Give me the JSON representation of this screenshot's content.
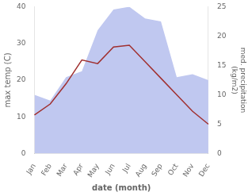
{
  "chart_data": {
    "type": "line",
    "categories": [
      "Jan",
      "Feb",
      "Mar",
      "Apr",
      "May",
      "Jun",
      "Jul",
      "Aug",
      "Sep",
      "Oct",
      "Nov",
      "Dec"
    ],
    "xlabel": "date (month)",
    "ylabel": "max temp (C)",
    "y2label": "med. precipitation\n(kg/m2)",
    "ylim": [
      0,
      40
    ],
    "yticks": [
      0,
      10,
      20,
      30,
      40
    ],
    "y2lim": [
      0,
      25
    ],
    "y2ticks": [
      0,
      5,
      10,
      15,
      20,
      25
    ],
    "grid": false,
    "series": [
      {
        "type": "area",
        "color": "#c0c8f0",
        "axis": "y2",
        "values": [
          10.0,
          9.0,
          13.0,
          14.0,
          21.0,
          24.5,
          25.0,
          23.0,
          22.5,
          13.0,
          13.5,
          12.5
        ]
      },
      {
        "type": "line",
        "color": "#a03030",
        "values": [
          10.5,
          13.5,
          19.0,
          25.5,
          24.5,
          29.0,
          29.5,
          25.0,
          20.5,
          16.0,
          11.5,
          8.0
        ]
      }
    ]
  }
}
